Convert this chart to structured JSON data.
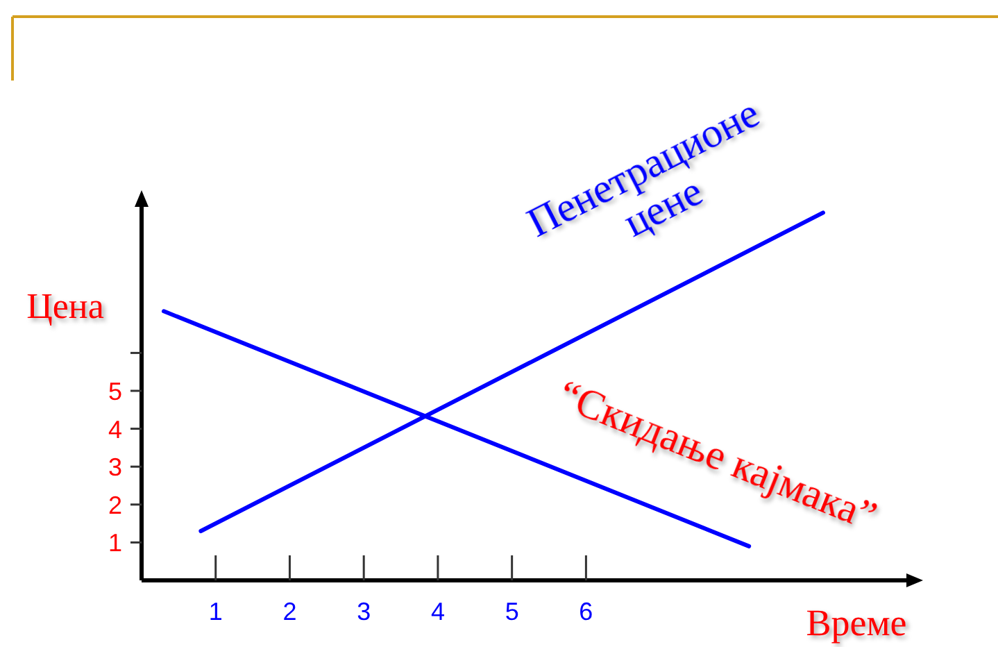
{
  "chart_data": {
    "type": "line",
    "xlabel": "Време",
    "ylabel": "Цена",
    "xlim": [
      0,
      10.4
    ],
    "xticks": [
      1,
      2,
      3,
      4,
      5,
      6
    ],
    "ylim": [
      0,
      10
    ],
    "yticks": [
      1,
      2,
      3,
      4,
      5,
      {
        "value": 6,
        "label": null
      }
    ],
    "series": [
      {
        "name": "Пенетрационе цене",
        "color": "#0000ff",
        "x": [
          0.8,
          9.2
        ],
        "values": [
          1.3,
          9.7
        ]
      },
      {
        "name": "“Скидање кајмака”",
        "color": "#0000ff",
        "x": [
          0.3,
          8.2
        ],
        "values": [
          7.1,
          0.9
        ]
      }
    ]
  }
}
